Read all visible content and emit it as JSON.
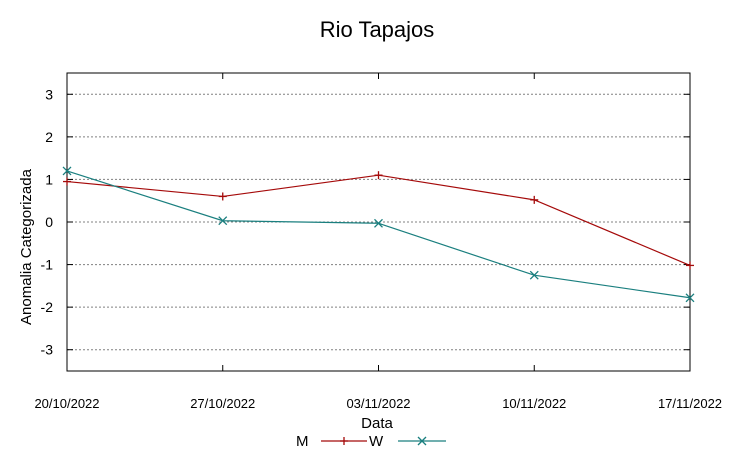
{
  "chart_data": {
    "type": "line",
    "title": "Rio Tapajos",
    "xlabel": "Data",
    "ylabel": "Anomalia Categorizada",
    "categories": [
      "20/10/2022",
      "27/10/2022",
      "03/11/2022",
      "10/11/2022",
      "17/11/2022"
    ],
    "yticks": [
      3,
      2,
      1,
      0,
      -1,
      -2,
      -3
    ],
    "ylim": [
      -3.5,
      3.5
    ],
    "grid": true,
    "legend": "bottom-center",
    "series": [
      {
        "name": "M",
        "marker": "plus",
        "color": "#a50a0a",
        "values": [
          0.95,
          0.6,
          1.1,
          0.52,
          -1.02
        ]
      },
      {
        "name": "W",
        "marker": "x",
        "color": "#1a7f7f",
        "values": [
          1.2,
          0.03,
          -0.03,
          -1.25,
          -1.78
        ]
      }
    ]
  }
}
